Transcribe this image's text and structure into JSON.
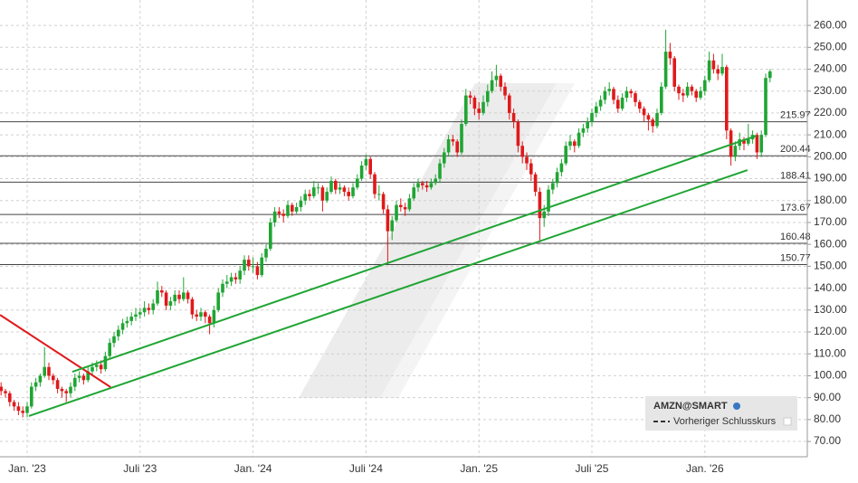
{
  "chart_data": {
    "type": "candlestick",
    "up_color": "#1fa533",
    "down_color": "#e0191b",
    "categories": [
      null,
      null,
      null,
      null,
      null,
      null,
      "Jan. '23",
      null,
      null,
      null,
      null,
      null,
      null,
      null,
      null,
      null,
      null,
      null,
      null,
      null,
      null,
      null,
      null,
      null,
      null,
      null,
      null,
      null,
      null,
      null,
      null,
      null,
      "Juli '23",
      null,
      null,
      null,
      null,
      null,
      null,
      null,
      null,
      null,
      null,
      null,
      null,
      null,
      null,
      null,
      null,
      null,
      null,
      null,
      null,
      null,
      null,
      null,
      null,
      null,
      "Jan. '24",
      null,
      null,
      null,
      null,
      null,
      null,
      null,
      null,
      null,
      null,
      null,
      null,
      null,
      null,
      null,
      null,
      null,
      null,
      null,
      null,
      null,
      null,
      null,
      null,
      null,
      "Juli '24",
      null,
      null,
      null,
      null,
      null,
      null,
      null,
      null,
      null,
      null,
      null,
      null,
      null,
      null,
      null,
      null,
      null,
      null,
      null,
      null,
      null,
      null,
      null,
      null,
      null,
      "Jan. '25",
      null,
      null,
      null,
      null,
      null,
      null,
      null,
      null,
      null,
      null,
      null,
      null,
      null,
      null,
      null,
      null,
      null,
      null,
      null,
      null,
      null,
      null,
      null,
      null,
      null,
      "Juli '25",
      null,
      null,
      null,
      null,
      null,
      null,
      null,
      null,
      null,
      null,
      null,
      null,
      null,
      null,
      null,
      null,
      null,
      null,
      null,
      null,
      null,
      null,
      null,
      null,
      null,
      "Jan. '26",
      null,
      null,
      null,
      null,
      null,
      null,
      null,
      null,
      null,
      null,
      null,
      null,
      null,
      null,
      null
    ],
    "candles": [
      [
        95,
        97,
        91,
        93
      ],
      [
        93,
        94,
        90,
        92
      ],
      [
        92,
        93,
        86,
        88
      ],
      [
        88,
        89,
        84,
        86
      ],
      [
        86,
        88,
        82,
        84
      ],
      [
        84,
        86,
        81,
        83
      ],
      [
        83,
        88,
        81,
        86
      ],
      [
        86,
        97,
        85,
        95
      ],
      [
        95,
        99,
        93,
        97
      ],
      [
        97,
        101,
        95,
        100
      ],
      [
        100,
        113,
        99,
        104
      ],
      [
        104,
        106,
        98,
        100
      ],
      [
        100,
        101,
        96,
        98
      ],
      [
        98,
        99,
        92,
        94
      ],
      [
        94,
        95,
        90,
        93
      ],
      [
        93,
        94,
        88,
        92
      ],
      [
        92,
        97,
        90,
        95
      ],
      [
        95,
        101,
        93,
        99
      ],
      [
        99,
        102,
        97,
        100
      ],
      [
        100,
        101,
        96,
        98
      ],
      [
        98,
        104,
        97,
        102
      ],
      [
        102,
        106,
        100,
        104
      ],
      [
        104,
        107,
        102,
        105
      ],
      [
        105,
        107,
        101,
        103
      ],
      [
        103,
        111,
        102,
        109
      ],
      [
        109,
        117,
        108,
        115
      ],
      [
        115,
        120,
        113,
        118
      ],
      [
        118,
        123,
        116,
        121
      ],
      [
        121,
        126,
        119,
        124
      ],
      [
        124,
        127,
        122,
        125
      ],
      [
        125,
        129,
        123,
        127
      ],
      [
        127,
        131,
        125,
        128
      ],
      [
        128,
        131,
        126,
        129
      ],
      [
        129,
        134,
        127,
        131
      ],
      [
        131,
        133,
        128,
        130
      ],
      [
        130,
        135,
        128,
        133
      ],
      [
        133,
        143,
        132,
        139
      ],
      [
        139,
        141,
        136,
        138
      ],
      [
        138,
        139,
        130,
        132
      ],
      [
        132,
        136,
        130,
        134
      ],
      [
        134,
        139,
        132,
        137
      ],
      [
        137,
        139,
        133,
        135
      ],
      [
        135,
        145,
        134,
        138
      ],
      [
        138,
        139,
        133,
        135
      ],
      [
        135,
        136,
        126,
        128
      ],
      [
        128,
        130,
        125,
        127
      ],
      [
        127,
        131,
        125,
        129
      ],
      [
        129,
        130,
        124,
        127
      ],
      [
        127,
        128,
        119,
        124
      ],
      [
        124,
        132,
        122,
        130
      ],
      [
        130,
        140,
        129,
        138
      ],
      [
        138,
        144,
        136,
        142
      ],
      [
        142,
        146,
        140,
        143
      ],
      [
        143,
        147,
        141,
        145
      ],
      [
        145,
        147,
        142,
        144
      ],
      [
        144,
        150,
        142,
        148
      ],
      [
        148,
        155,
        146,
        153
      ],
      [
        153,
        155,
        148,
        150
      ],
      [
        150,
        154,
        147,
        150
      ],
      [
        150,
        152,
        144,
        146
      ],
      [
        146,
        156,
        145,
        154
      ],
      [
        154,
        160,
        152,
        158
      ],
      [
        158,
        172,
        157,
        170
      ],
      [
        170,
        177,
        168,
        175
      ],
      [
        175,
        177,
        172,
        174
      ],
      [
        174,
        176,
        170,
        173
      ],
      [
        173,
        180,
        172,
        178
      ],
      [
        178,
        179,
        173,
        175
      ],
      [
        175,
        179,
        174,
        177
      ],
      [
        177,
        182,
        175,
        180
      ],
      [
        180,
        185,
        178,
        183
      ],
      [
        183,
        185,
        180,
        182
      ],
      [
        182,
        189,
        181,
        186
      ],
      [
        186,
        188,
        183,
        186
      ],
      [
        186,
        187,
        175,
        180
      ],
      [
        180,
        186,
        179,
        184
      ],
      [
        184,
        191,
        183,
        189
      ],
      [
        189,
        190,
        183,
        185
      ],
      [
        185,
        188,
        183,
        186
      ],
      [
        186,
        187,
        182,
        184
      ],
      [
        184,
        186,
        180,
        182
      ],
      [
        182,
        188,
        181,
        186
      ],
      [
        186,
        192,
        185,
        190
      ],
      [
        190,
        198,
        189,
        196
      ],
      [
        196,
        201,
        194,
        199
      ],
      [
        199,
        200,
        190,
        192
      ],
      [
        192,
        193,
        181,
        183
      ],
      [
        183,
        187,
        180,
        183
      ],
      [
        183,
        184,
        174,
        176
      ],
      [
        176,
        178,
        151,
        166
      ],
      [
        166,
        173,
        162,
        171
      ],
      [
        171,
        180,
        170,
        178
      ],
      [
        178,
        181,
        175,
        177
      ],
      [
        177,
        179,
        173,
        176
      ],
      [
        176,
        183,
        175,
        181
      ],
      [
        181,
        188,
        180,
        186
      ],
      [
        186,
        190,
        184,
        188
      ],
      [
        188,
        189,
        185,
        187
      ],
      [
        187,
        189,
        184,
        186
      ],
      [
        186,
        190,
        185,
        188
      ],
      [
        188,
        192,
        187,
        190
      ],
      [
        190,
        199,
        188,
        197
      ],
      [
        197,
        204,
        195,
        202
      ],
      [
        202,
        210,
        200,
        208
      ],
      [
        208,
        210,
        205,
        207
      ],
      [
        207,
        208,
        200,
        202
      ],
      [
        202,
        217,
        201,
        215
      ],
      [
        215,
        231,
        214,
        228
      ],
      [
        228,
        230,
        224,
        227
      ],
      [
        227,
        228,
        219,
        222
      ],
      [
        222,
        225,
        217,
        220
      ],
      [
        220,
        228,
        219,
        225
      ],
      [
        225,
        233,
        223,
        230
      ],
      [
        230,
        239,
        229,
        235
      ],
      [
        235,
        242,
        232,
        237
      ],
      [
        237,
        238,
        230,
        232
      ],
      [
        232,
        234,
        226,
        228
      ],
      [
        228,
        229,
        217,
        220
      ],
      [
        220,
        222,
        213,
        216
      ],
      [
        216,
        217,
        202,
        205
      ],
      [
        205,
        207,
        197,
        200
      ],
      [
        200,
        202,
        194,
        197
      ],
      [
        197,
        199,
        189,
        192
      ],
      [
        192,
        193,
        182,
        184
      ],
      [
        184,
        186,
        161,
        172
      ],
      [
        172,
        178,
        168,
        175
      ],
      [
        175,
        187,
        173,
        185
      ],
      [
        185,
        190,
        183,
        188
      ],
      [
        188,
        195,
        186,
        193
      ],
      [
        193,
        199,
        191,
        197
      ],
      [
        197,
        207,
        196,
        205
      ],
      [
        205,
        210,
        203,
        207
      ],
      [
        207,
        208,
        202,
        205
      ],
      [
        205,
        213,
        204,
        211
      ],
      [
        211,
        215,
        209,
        213
      ],
      [
        213,
        218,
        211,
        216
      ],
      [
        216,
        222,
        214,
        220
      ],
      [
        220,
        225,
        218,
        223
      ],
      [
        223,
        228,
        221,
        226
      ],
      [
        226,
        232,
        224,
        230
      ],
      [
        230,
        234,
        228,
        231
      ],
      [
        231,
        232,
        224,
        226
      ],
      [
        226,
        228,
        220,
        222
      ],
      [
        222,
        229,
        221,
        227
      ],
      [
        227,
        232,
        225,
        230
      ],
      [
        230,
        231,
        227,
        229
      ],
      [
        229,
        230,
        223,
        225
      ],
      [
        225,
        226,
        220,
        222
      ],
      [
        222,
        223,
        216,
        219
      ],
      [
        219,
        220,
        212,
        217
      ],
      [
        217,
        218,
        211,
        214
      ],
      [
        214,
        222,
        213,
        220
      ],
      [
        220,
        234,
        219,
        232
      ],
      [
        232,
        258,
        231,
        248
      ],
      [
        248,
        252,
        242,
        245
      ],
      [
        245,
        246,
        230,
        232
      ],
      [
        232,
        233,
        226,
        229
      ],
      [
        229,
        231,
        225,
        228
      ],
      [
        228,
        234,
        227,
        232
      ],
      [
        232,
        233,
        228,
        230
      ],
      [
        230,
        231,
        225,
        227
      ],
      [
        227,
        232,
        226,
        230
      ],
      [
        230,
        237,
        228,
        235
      ],
      [
        235,
        248,
        234,
        244
      ],
      [
        244,
        247,
        238,
        240
      ],
      [
        240,
        242,
        235,
        238
      ],
      [
        238,
        247,
        237,
        241
      ],
      [
        241,
        242,
        208,
        212
      ],
      [
        212,
        213,
        196,
        200
      ],
      [
        200,
        207,
        198,
        205
      ],
      [
        205,
        211,
        203,
        208
      ],
      [
        208,
        209,
        203,
        206
      ],
      [
        206,
        215,
        205,
        208
      ],
      [
        208,
        212,
        206,
        210
      ],
      [
        210,
        211,
        199,
        202
      ],
      [
        202,
        212,
        200,
        210
      ],
      [
        210,
        238,
        209,
        236
      ],
      [
        236,
        240,
        234,
        239
      ]
    ],
    "ylim": [
      63,
      271.6
    ],
    "yticks": [
      {
        "value": 70,
        "label": "70.00"
      },
      {
        "value": 80,
        "label": "80.00"
      },
      {
        "value": 90,
        "label": "90.00"
      },
      {
        "value": 100,
        "label": "100.00"
      },
      {
        "value": 110,
        "label": "110.00"
      },
      {
        "value": 120,
        "label": "120.00"
      },
      {
        "value": 130,
        "label": "130.00"
      },
      {
        "value": 140,
        "label": "140.00"
      },
      {
        "value": 150,
        "label": "150.00"
      },
      {
        "value": 160,
        "label": "160.00"
      },
      {
        "value": 170,
        "label": "170.00"
      },
      {
        "value": 180,
        "label": "180.00"
      },
      {
        "value": 190,
        "label": "190.00"
      },
      {
        "value": 200,
        "label": "200.00"
      },
      {
        "value": 210,
        "label": "210.00"
      },
      {
        "value": 220,
        "label": "220.00"
      },
      {
        "value": 230,
        "label": "230.00"
      },
      {
        "value": 240,
        "label": "240.00"
      },
      {
        "value": 250,
        "label": "250.00"
      },
      {
        "value": 260,
        "label": "260.00"
      }
    ],
    "grid": true,
    "levels": [
      215.97,
      200.44,
      188.41,
      173.67,
      160.48,
      150.77
    ],
    "trendlines": [
      {
        "color": "#e0191b",
        "x": [
          -0.25,
          25.2
        ],
        "y": [
          127.8,
          94.8
        ]
      },
      {
        "color": "#1fa533",
        "x": [
          6.4,
          171.8
        ],
        "y": [
          81.6,
          193.9
        ]
      },
      {
        "color": "#1fa533",
        "x": [
          16.4,
          173.9
        ],
        "y": [
          101.8,
          209.6
        ]
      }
    ],
    "legend": {
      "symbol": "AMZN@SMART",
      "prev_close": "Vorheriger Schlusskurs"
    }
  }
}
